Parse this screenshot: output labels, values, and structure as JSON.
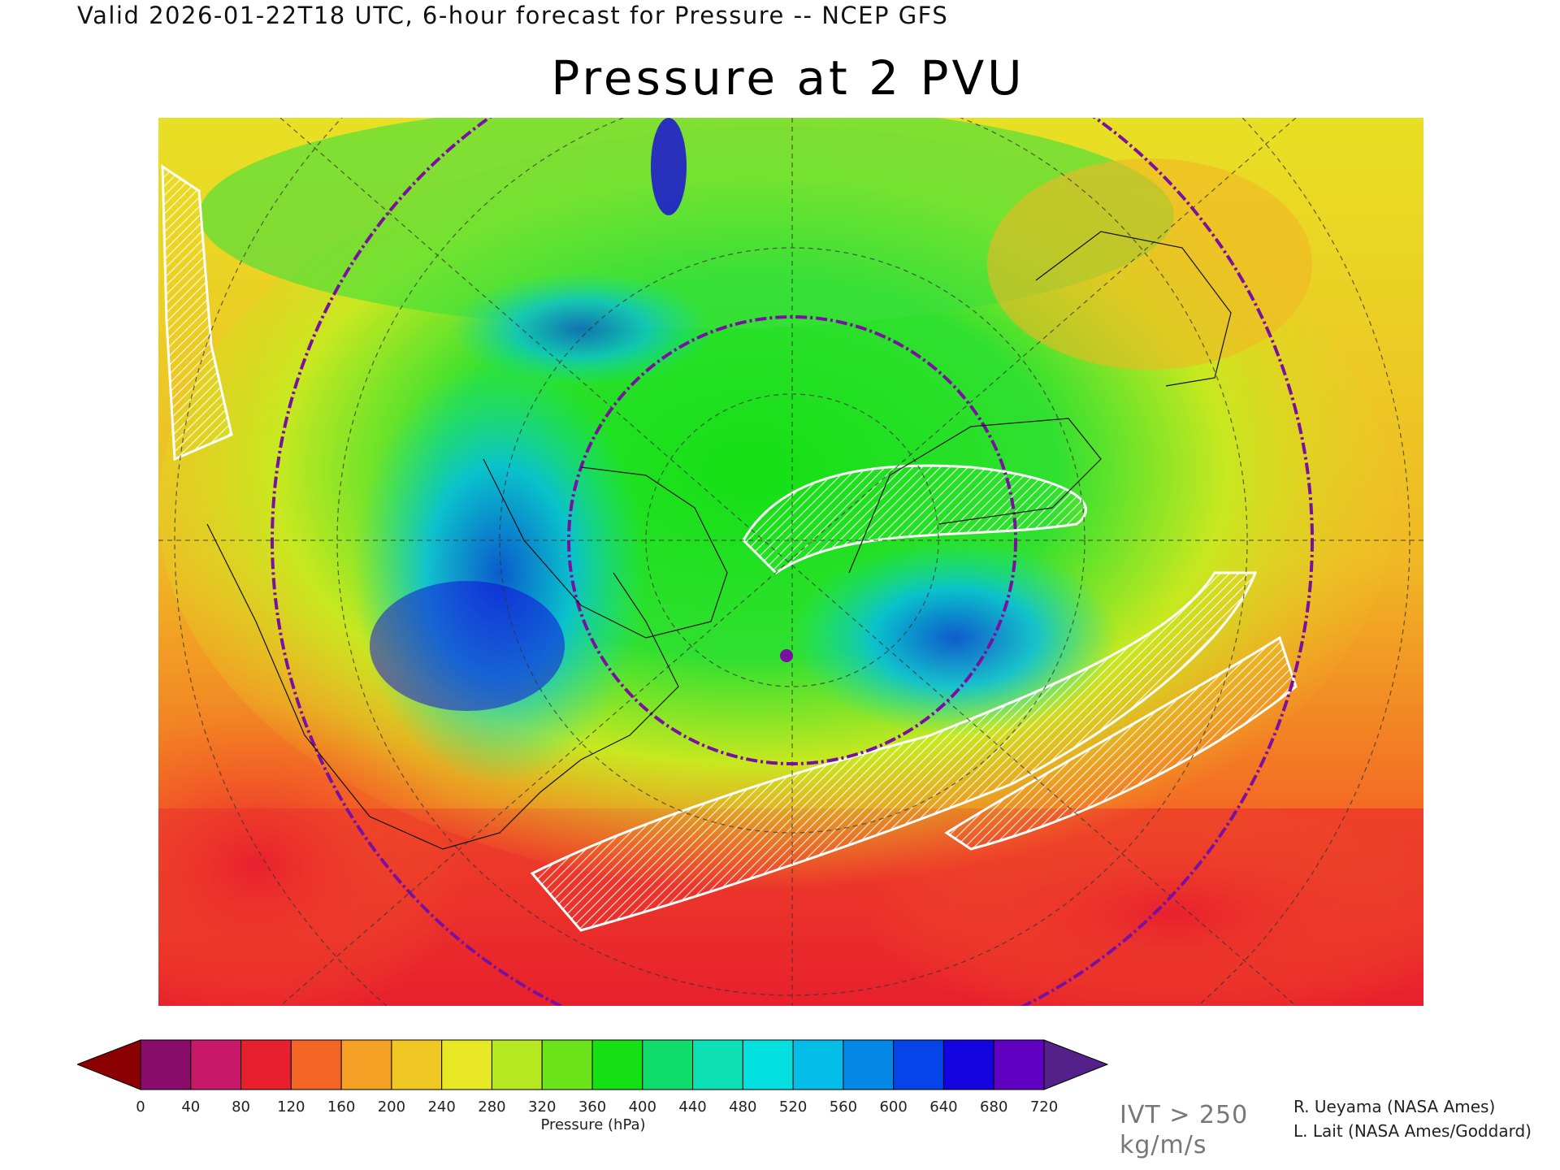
{
  "header": {
    "valid_line": "Valid 2026-01-22T18 UTC, 6-hour forecast for Pressure -- NCEP GFS",
    "title": "Pressure at 2 PVU"
  },
  "chart_data": {
    "type": "heatmap",
    "title": "Pressure at 2 PVU",
    "projection": "polar stereographic, Northern Hemisphere",
    "colorbar": {
      "label": "Pressure (hPa)",
      "ticks": [
        "0",
        "40",
        "80",
        "120",
        "160",
        "200",
        "240",
        "280",
        "320",
        "360",
        "400",
        "440",
        "480",
        "520",
        "560",
        "600",
        "640",
        "680",
        "720"
      ],
      "under_color": "#8b0000",
      "over_color": "#54208a",
      "colors": [
        "#8a0c6a",
        "#c8186a",
        "#e8202e",
        "#f46424",
        "#f4a024",
        "#f0c824",
        "#e8e824",
        "#b4e820",
        "#6ce41c",
        "#14e014",
        "#10dc6c",
        "#0ce0b4",
        "#04e0e0",
        "#04bce8",
        "#0488e8",
        "#0444e8",
        "#1404e0",
        "#6000c0"
      ]
    },
    "overlay": {
      "label_line1": "IVT > 250",
      "label_line2": "kg/m/s",
      "style": "white hatched contour"
    }
  },
  "credits": {
    "line1": "R. Ueyama (NASA Ames)",
    "line2": "L. Lait (NASA Ames/Goddard)"
  }
}
